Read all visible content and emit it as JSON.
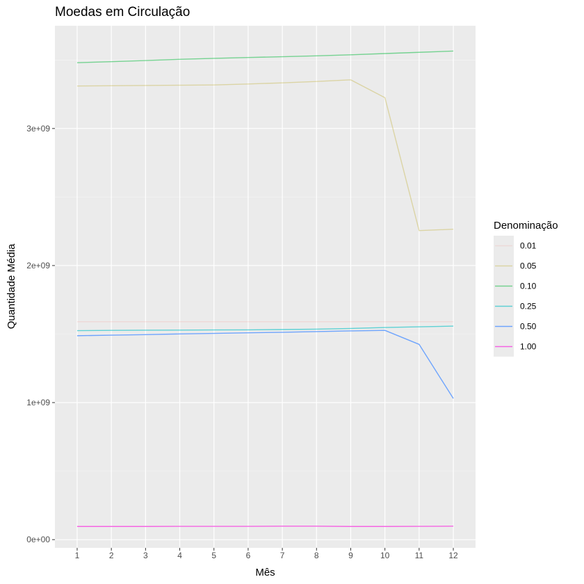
{
  "chart_data": {
    "type": "line",
    "title": "Moedas em Circulação",
    "xlabel": "Mês",
    "ylabel": "Quantidade Média",
    "x": [
      1,
      2,
      3,
      4,
      5,
      6,
      7,
      8,
      9,
      10,
      11,
      12
    ],
    "x_tick_labels": [
      "1",
      "2",
      "3",
      "4",
      "5",
      "6",
      "7",
      "8",
      "9",
      "10",
      "11",
      "12"
    ],
    "xlim": [
      0.35,
      12.65
    ],
    "ylim": [
      -60000000,
      3750000000
    ],
    "y_ticks": [
      0,
      1000000000,
      2000000000,
      3000000000
    ],
    "y_tick_labels": [
      "0e+00",
      "1e+09",
      "2e+09",
      "3e+09"
    ],
    "grid": true,
    "legend": {
      "title": "Denominação",
      "placement": "right"
    },
    "series": [
      {
        "name": "0.01",
        "color": "#F8766D",
        "opacity": 0.15,
        "values": [
          1590000000,
          1590000000,
          1590000000,
          1590000000,
          1590000000,
          1590000000,
          1590000000,
          1590000000,
          1590000000,
          1590000000,
          1590000000,
          1590000000
        ]
      },
      {
        "name": "0.05",
        "color": "#B79F00",
        "opacity": 0.3,
        "values": [
          3310000000,
          3312000000,
          3314000000,
          3316000000,
          3318000000,
          3325000000,
          3333000000,
          3343000000,
          3355000000,
          3225000000,
          2255000000,
          2265000000
        ]
      },
      {
        "name": "0.10",
        "color": "#00BA38",
        "opacity": 0.5,
        "values": [
          3480000000,
          3488000000,
          3496000000,
          3505000000,
          3512000000,
          3518000000,
          3524000000,
          3530000000,
          3538000000,
          3547000000,
          3556000000,
          3565000000
        ]
      },
      {
        "name": "0.25",
        "color": "#00BFC4",
        "opacity": 0.6,
        "values": [
          1525000000,
          1527000000,
          1528000000,
          1529000000,
          1530000000,
          1531000000,
          1533000000,
          1536000000,
          1541000000,
          1548000000,
          1553000000,
          1558000000
        ]
      },
      {
        "name": "0.50",
        "color": "#619CFF",
        "opacity": 0.9,
        "values": [
          1488000000,
          1492000000,
          1496000000,
          1501000000,
          1505000000,
          1509000000,
          1513000000,
          1518000000,
          1523000000,
          1527000000,
          1425000000,
          1030000000
        ]
      },
      {
        "name": "1.00",
        "color": "#F564E3",
        "opacity": 1,
        "values": [
          96000000,
          96000000,
          96000000,
          97000000,
          97000000,
          97000000,
          98000000,
          98000000,
          96000000,
          96000000,
          97000000,
          98000000
        ]
      }
    ]
  }
}
